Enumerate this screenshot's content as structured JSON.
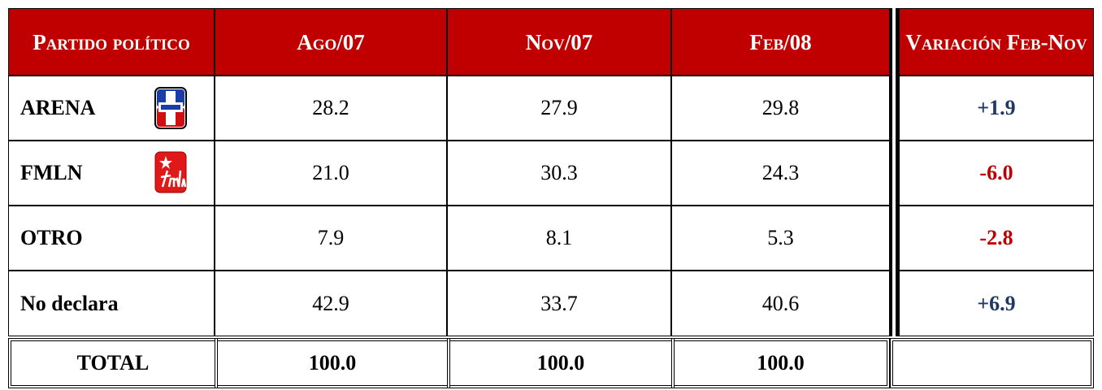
{
  "table": {
    "header": [
      "Partido político",
      "Ago/07",
      "Nov/07",
      "Feb/08",
      "Variación Feb-Nov"
    ],
    "rows": [
      [
        "ARENA",
        "28.2",
        "27.9",
        "29.8",
        "+1.9"
      ],
      [
        "FMLN",
        "21.0",
        "30.3",
        "24.3",
        "-6.0"
      ],
      [
        "OTRO",
        "7.9",
        "8.1",
        "5.3",
        "-2.8"
      ],
      [
        "No declara",
        "42.9",
        "33.7",
        "40.6",
        "+6.9"
      ]
    ],
    "total": [
      "TOTAL",
      "100.0",
      "100.0",
      "100.0"
    ]
  }
}
